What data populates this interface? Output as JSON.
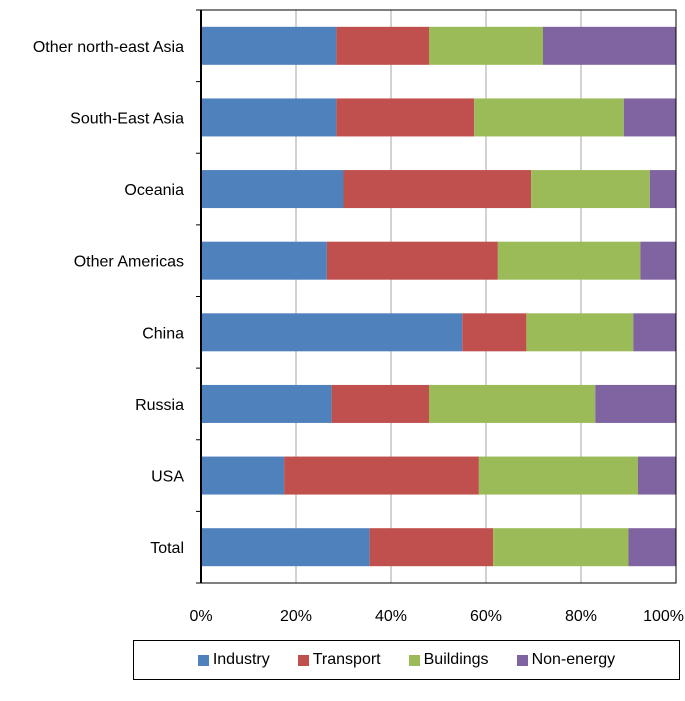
{
  "chart_data": {
    "type": "bar",
    "orientation": "horizontal",
    "stacked": true,
    "normalized": true,
    "categories": [
      "Total",
      "USA",
      "Russia",
      "China",
      "Other Americas",
      "Oceania",
      "South-East Asia",
      "Other north-east Asia"
    ],
    "series": [
      {
        "name": "Industry",
        "color": "#4F81BD",
        "values": [
          35.5,
          17.5,
          27.5,
          55.0,
          26.5,
          30.0,
          28.5,
          28.5
        ]
      },
      {
        "name": "Transport",
        "color": "#C0504D",
        "values": [
          26.0,
          41.0,
          20.5,
          13.5,
          36.0,
          39.5,
          29.0,
          19.5
        ]
      },
      {
        "name": "Buildings",
        "color": "#9BBB59",
        "values": [
          28.5,
          33.5,
          35.0,
          22.5,
          30.0,
          25.0,
          31.5,
          24.0
        ]
      },
      {
        "name": "Non-energy",
        "color": "#8064A2",
        "values": [
          10.0,
          8.0,
          17.0,
          9.0,
          7.5,
          5.5,
          11.0,
          28.0
        ]
      }
    ],
    "xlim": [
      0,
      100
    ],
    "x_ticks": [
      "0%",
      "20%",
      "40%",
      "60%",
      "80%",
      "100%"
    ],
    "grid": true,
    "legend_position": "bottom"
  }
}
